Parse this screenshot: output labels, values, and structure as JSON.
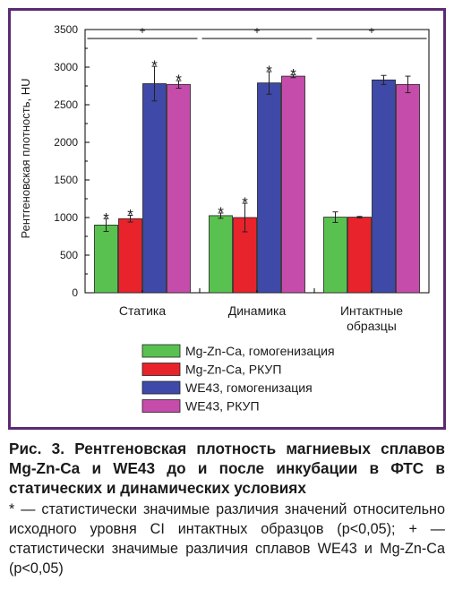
{
  "colors": {
    "frame": "#5b2a73",
    "series": [
      "#59c14f",
      "#e8232b",
      "#3f49a8",
      "#c54cab"
    ]
  },
  "chart_data": {
    "type": "bar",
    "ylabel": "Рентгеновская плотность, HU",
    "xlabel": "",
    "ylim": [
      0,
      3500
    ],
    "yticks": [
      0,
      500,
      1000,
      1500,
      2000,
      2500,
      3000,
      3500
    ],
    "categories": [
      "Статика",
      "Динамика",
      "Интактные образцы"
    ],
    "category_lines": [
      [
        "Статика"
      ],
      [
        "Динамика"
      ],
      [
        "Интактные",
        "образцы"
      ]
    ],
    "series": [
      {
        "name": "Mg-Zn-Ca, гомогенизация",
        "values": [
          900,
          1025,
          1005
        ],
        "errors": [
          85,
          35,
          70
        ],
        "markers": [
          "*",
          "*",
          ""
        ]
      },
      {
        "name": "Mg-Zn-Ca, РКУП",
        "values": [
          985,
          1000,
          1005
        ],
        "errors": [
          45,
          190,
          10
        ],
        "markers": [
          "*",
          "*",
          ""
        ]
      },
      {
        "name": "WE43, гомогенизация",
        "values": [
          2780,
          2790,
          2830
        ],
        "errors": [
          230,
          150,
          60
        ],
        "markers": [
          "*",
          "*",
          ""
        ]
      },
      {
        "name": "WE43, РКУП",
        "values": [
          2770,
          2880,
          2770
        ],
        "errors": [
          50,
          20,
          110
        ],
        "markers": [
          "*",
          "*",
          ""
        ]
      }
    ],
    "significance": [
      "+",
      "+",
      "+"
    ],
    "legend_position": "bottom"
  },
  "caption": {
    "title": "Рис. 3. Рентгеновская плотность магниевых сплавов Mg-Zn-Ca и WE43 до и после инкубации в ФТС в статических и динамических условиях",
    "note": "* — статистически значимые различия значений относительно исходного уровня CI интактных образцов (p<0,05); + — статистически значимые различия сплавов WE43 и Mg-Zn-Ca (p<0,05)"
  }
}
